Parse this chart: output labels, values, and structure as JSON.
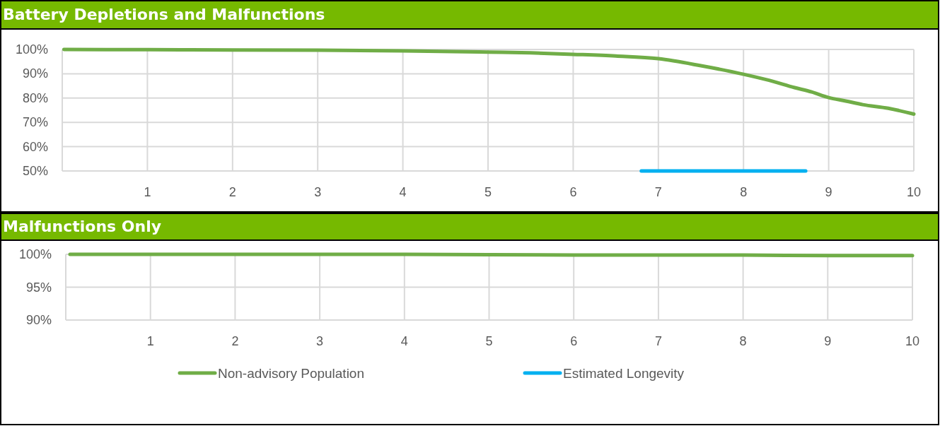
{
  "chart_data": [
    {
      "type": "line",
      "title": "Battery Depletions and Malfunctions",
      "x": [
        0.02,
        1,
        2,
        3,
        4,
        5,
        5.5,
        6,
        6.5,
        7,
        7.5,
        8,
        8.3,
        8.6,
        8.8,
        9,
        9.2,
        9.4,
        9.7,
        10
      ],
      "series": [
        {
          "name": "Non-advisory Population",
          "color": "#70ad47",
          "values": [
            100,
            99.9,
            99.8,
            99.7,
            99.4,
            98.9,
            98.6,
            98,
            97.3,
            96.2,
            93.3,
            89.8,
            87.3,
            84.3,
            82.5,
            80.2,
            78.8,
            77.3,
            75.8,
            73.4
          ]
        },
        {
          "name": "Estimated Longevity",
          "color": "#00b0f0",
          "x": [
            6.8,
            8.73
          ],
          "values": [
            50,
            50
          ]
        }
      ],
      "xlim": [
        0,
        10
      ],
      "xticks": [
        1,
        2,
        3,
        4,
        5,
        6,
        7,
        8,
        9,
        10
      ],
      "ylim": [
        50,
        100
      ],
      "yticks": [
        {
          "value": 50,
          "label": "50%"
        },
        {
          "value": 60,
          "label": "60%"
        },
        {
          "value": 70,
          "label": "70%"
        },
        {
          "value": 80,
          "label": "80%"
        },
        {
          "value": 90,
          "label": "90%"
        },
        {
          "value": 100,
          "label": "100%"
        }
      ],
      "grid": true,
      "legend": "bottom",
      "marker": "none"
    },
    {
      "type": "line",
      "title": "Malfunctions Only",
      "x": [
        0.05,
        2,
        4,
        6,
        7,
        8,
        9,
        10
      ],
      "series": [
        {
          "color": "#70ad47",
          "values": [
            100,
            100,
            100,
            99.9,
            99.9,
            99.9,
            99.8,
            99.8
          ]
        }
      ],
      "xlim": [
        0,
        10
      ],
      "xticks": [
        1,
        2,
        3,
        4,
        5,
        6,
        7,
        8,
        9,
        10
      ],
      "ylim": [
        90,
        100
      ],
      "yticks": [
        {
          "value": 90,
          "label": "90%"
        },
        {
          "value": 95,
          "label": "95%"
        },
        {
          "value": 100,
          "label": "100%"
        }
      ],
      "grid": true,
      "marker": "none"
    }
  ]
}
